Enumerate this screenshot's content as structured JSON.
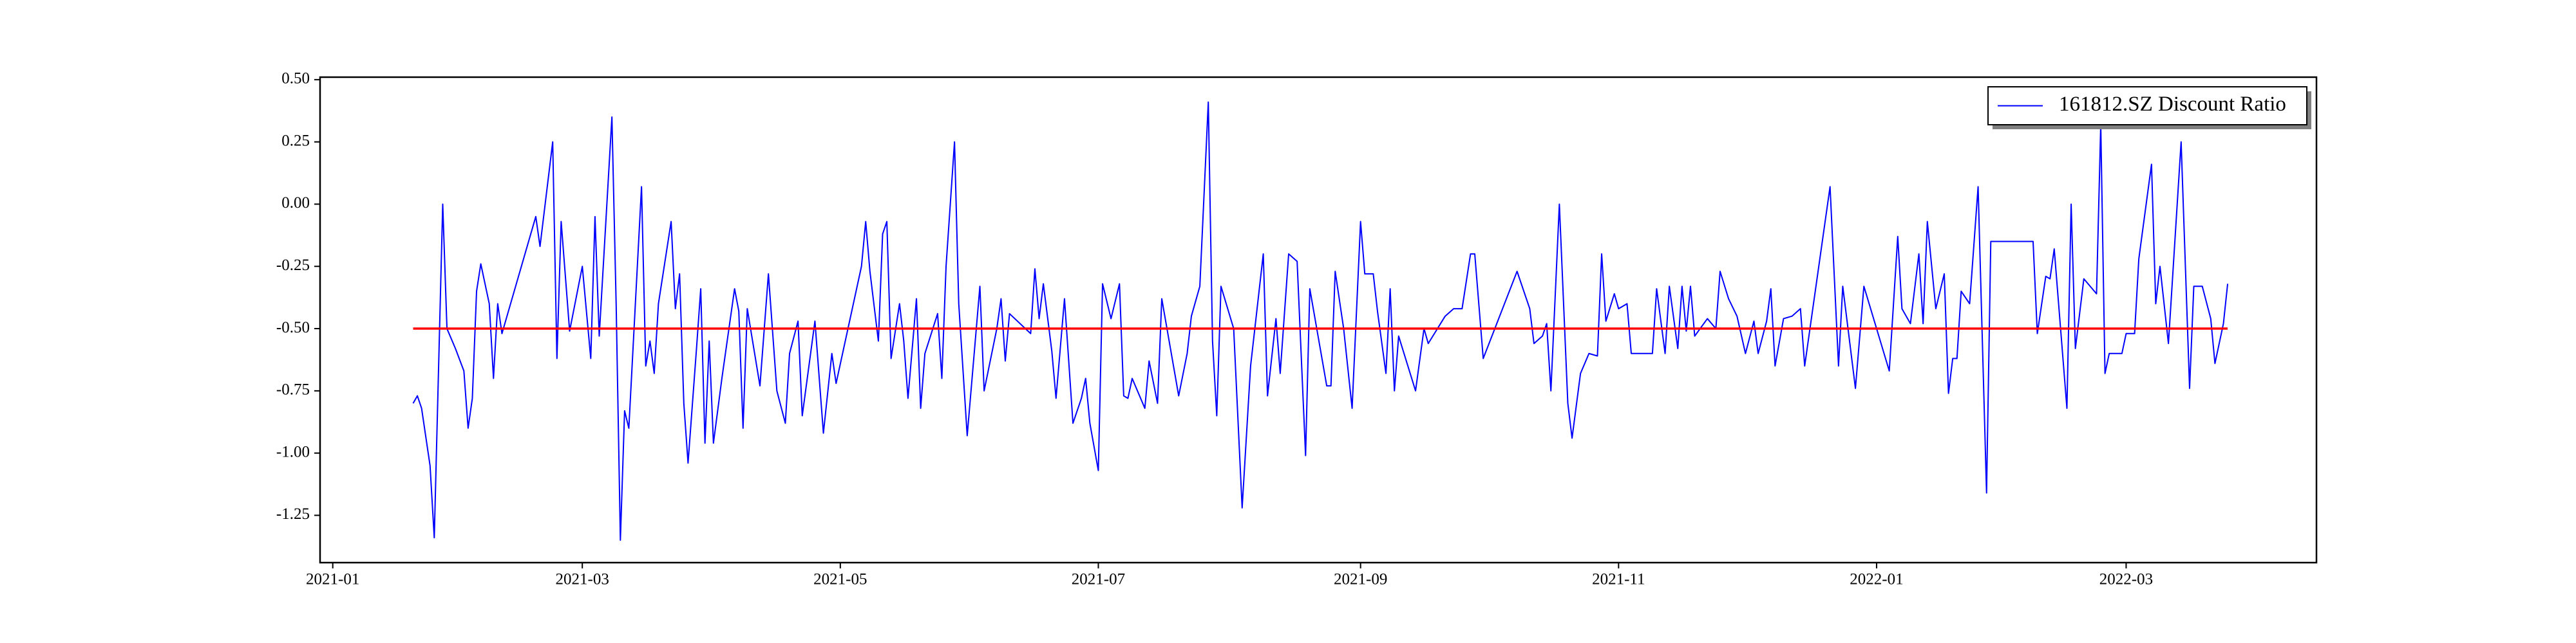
{
  "chart_data": {
    "type": "line",
    "x": [
      18647,
      18648,
      18649,
      18651,
      18652,
      18654,
      18655,
      18657,
      18659,
      18660,
      18661,
      18662,
      18663,
      18665,
      18666,
      18667,
      18668,
      18676,
      18677,
      18680,
      18681,
      18682,
      18684,
      18687,
      18689,
      18690,
      18691,
      18694,
      18695,
      18696,
      18697,
      18698,
      18701,
      18702,
      18703,
      18704,
      18705,
      18708,
      18709,
      18710,
      18711,
      18712,
      18714,
      18715,
      18716,
      18717,
      18718,
      18720,
      18723,
      18724,
      18725,
      18726,
      18729,
      18731,
      18733,
      18735,
      18736,
      18738,
      18739,
      18742,
      18744,
      18746,
      18747,
      18753,
      18754,
      18755,
      18757,
      18758,
      18759,
      18760,
      18762,
      18763,
      18764,
      18766,
      18767,
      18768,
      18771,
      18772,
      18773,
      18775,
      18776,
      18778,
      18781,
      18782,
      18785,
      18786,
      18787,
      18788,
      18793,
      18794,
      18795,
      18796,
      18798,
      18799,
      18801,
      18803,
      18805,
      18806,
      18807,
      18809,
      18810,
      18812,
      18814,
      18815,
      18816,
      18817,
      18820,
      18821,
      18823,
      18824,
      18828,
      18830,
      18831,
      18833,
      18835,
      18836,
      18837,
      18838,
      18841,
      18843,
      18845,
      18848,
      18849,
      18851,
      18852,
      18854,
      18856,
      18858,
      18859,
      18863,
      18864,
      18865,
      18867,
      18869,
      18871,
      18872,
      18874,
      18875,
      18877,
      18878,
      18879,
      18880,
      18884,
      18886,
      18887,
      18891,
      18893,
      18895,
      18897,
      18898,
      18900,
      18908,
      18911,
      18912,
      18914,
      18915,
      18916,
      18918,
      18920,
      18921,
      18923,
      18925,
      18927,
      18928,
      18929,
      18931,
      18932,
      18934,
      18935,
      18940,
      18941,
      18943,
      18944,
      18946,
      18947,
      18948,
      18949,
      18950,
      18953,
      18955,
      18956,
      18958,
      18960,
      18962,
      18964,
      18965,
      18967,
      18968,
      18969,
      18971,
      18973,
      18975,
      18976,
      18982,
      18984,
      18985,
      18988,
      18990,
      18996,
      18998,
      18999,
      19001,
      19003,
      19004,
      19005,
      19007,
      19009,
      19010,
      19011,
      19012,
      19013,
      19015,
      19017,
      19019,
      19020,
      19030,
      19031,
      19033,
      19034,
      19035,
      19038,
      19039,
      19040,
      19042,
      19045,
      19046,
      19047,
      19048,
      19051,
      19052,
      19054,
      19055,
      19058,
      19059,
      19060,
      19062,
      19065,
      19067,
      19068,
      19070,
      19072,
      19073,
      19075,
      19076
    ],
    "series": [
      {
        "name": "161812.SZ Discount Ratio",
        "color": "#0000ff",
        "values": [
          -0.8,
          -0.77,
          -0.82,
          -1.05,
          -1.34,
          0.0,
          -0.5,
          -0.58,
          -0.67,
          -0.9,
          -0.78,
          -0.35,
          -0.24,
          -0.4,
          -0.7,
          -0.4,
          -0.52,
          -0.05,
          -0.17,
          0.25,
          -0.62,
          -0.07,
          -0.51,
          -0.25,
          -0.62,
          -0.05,
          -0.53,
          0.35,
          -0.4,
          -1.35,
          -0.83,
          -0.9,
          0.07,
          -0.65,
          -0.55,
          -0.68,
          -0.4,
          -0.07,
          -0.42,
          -0.28,
          -0.8,
          -1.04,
          -0.58,
          -0.34,
          -0.96,
          -0.55,
          -0.96,
          -0.7,
          -0.34,
          -0.43,
          -0.9,
          -0.42,
          -0.73,
          -0.28,
          -0.75,
          -0.88,
          -0.6,
          -0.47,
          -0.85,
          -0.47,
          -0.92,
          -0.6,
          -0.72,
          -0.25,
          -0.07,
          -0.27,
          -0.55,
          -0.12,
          -0.07,
          -0.62,
          -0.4,
          -0.55,
          -0.78,
          -0.38,
          -0.82,
          -0.6,
          -0.44,
          -0.7,
          -0.25,
          0.25,
          -0.4,
          -0.93,
          -0.33,
          -0.75,
          -0.5,
          -0.38,
          -0.63,
          -0.44,
          -0.52,
          -0.26,
          -0.46,
          -0.32,
          -0.59,
          -0.78,
          -0.38,
          -0.88,
          -0.78,
          -0.7,
          -0.88,
          -1.07,
          -0.32,
          -0.46,
          -0.32,
          -0.77,
          -0.78,
          -0.7,
          -0.82,
          -0.63,
          -0.8,
          -0.38,
          -0.77,
          -0.6,
          -0.45,
          -0.33,
          0.41,
          -0.55,
          -0.85,
          -0.33,
          -0.5,
          -1.22,
          -0.65,
          -0.2,
          -0.77,
          -0.46,
          -0.68,
          -0.2,
          -0.23,
          -1.01,
          -0.34,
          -0.73,
          -0.73,
          -0.27,
          -0.5,
          -0.82,
          -0.07,
          -0.28,
          -0.28,
          -0.43,
          -0.68,
          -0.34,
          -0.75,
          -0.53,
          -0.75,
          -0.5,
          -0.56,
          -0.45,
          -0.42,
          -0.42,
          -0.2,
          -0.2,
          -0.62,
          -0.27,
          -0.42,
          -0.56,
          -0.53,
          -0.48,
          -0.75,
          0.0,
          -0.8,
          -0.94,
          -0.68,
          -0.6,
          -0.61,
          -0.2,
          -0.47,
          -0.36,
          -0.42,
          -0.4,
          -0.6,
          -0.6,
          -0.34,
          -0.6,
          -0.33,
          -0.58,
          -0.33,
          -0.51,
          -0.33,
          -0.53,
          -0.46,
          -0.5,
          -0.27,
          -0.38,
          -0.45,
          -0.6,
          -0.47,
          -0.6,
          -0.47,
          -0.34,
          -0.65,
          -0.46,
          -0.45,
          -0.42,
          -0.65,
          0.07,
          -0.65,
          -0.33,
          -0.74,
          -0.33,
          -0.67,
          -0.13,
          -0.42,
          -0.48,
          -0.2,
          -0.48,
          -0.07,
          -0.42,
          -0.28,
          -0.76,
          -0.62,
          -0.62,
          -0.35,
          -0.4,
          0.07,
          -1.16,
          -0.15,
          -0.15,
          -0.52,
          -0.29,
          -0.3,
          -0.18,
          -0.82,
          0.0,
          -0.58,
          -0.3,
          -0.36,
          0.32,
          -0.68,
          -0.6,
          -0.6,
          -0.52,
          -0.52,
          -0.22,
          0.16,
          -0.4,
          -0.25,
          -0.56,
          0.25,
          -0.74,
          -0.33,
          -0.33,
          -0.46,
          -0.64,
          -0.48,
          -0.32
        ]
      }
    ],
    "reference_line": {
      "value": -0.5,
      "color": "#ff0000"
    },
    "xlim": [
      18625,
      19097
    ],
    "xticks": [
      {
        "value": 18628,
        "label": "2021-01"
      },
      {
        "value": 18687,
        "label": "2021-03"
      },
      {
        "value": 18748,
        "label": "2021-05"
      },
      {
        "value": 18809,
        "label": "2021-07"
      },
      {
        "value": 18871,
        "label": "2021-09"
      },
      {
        "value": 18932,
        "label": "2021-11"
      },
      {
        "value": 18993,
        "label": "2022-01"
      },
      {
        "value": 19052,
        "label": "2022-03"
      }
    ],
    "ylim": [
      -1.44,
      0.51
    ],
    "yticks": [
      -1.25,
      {
        "value": -1,
        "label": "-1.00"
      },
      -0.75,
      {
        "value": -0.5,
        "label": "-0.50"
      },
      -0.25,
      {
        "value": 0,
        "label": "0.00"
      },
      0.25,
      {
        "value": 0.5,
        "label": "0.50"
      }
    ],
    "legend": "upper right"
  }
}
